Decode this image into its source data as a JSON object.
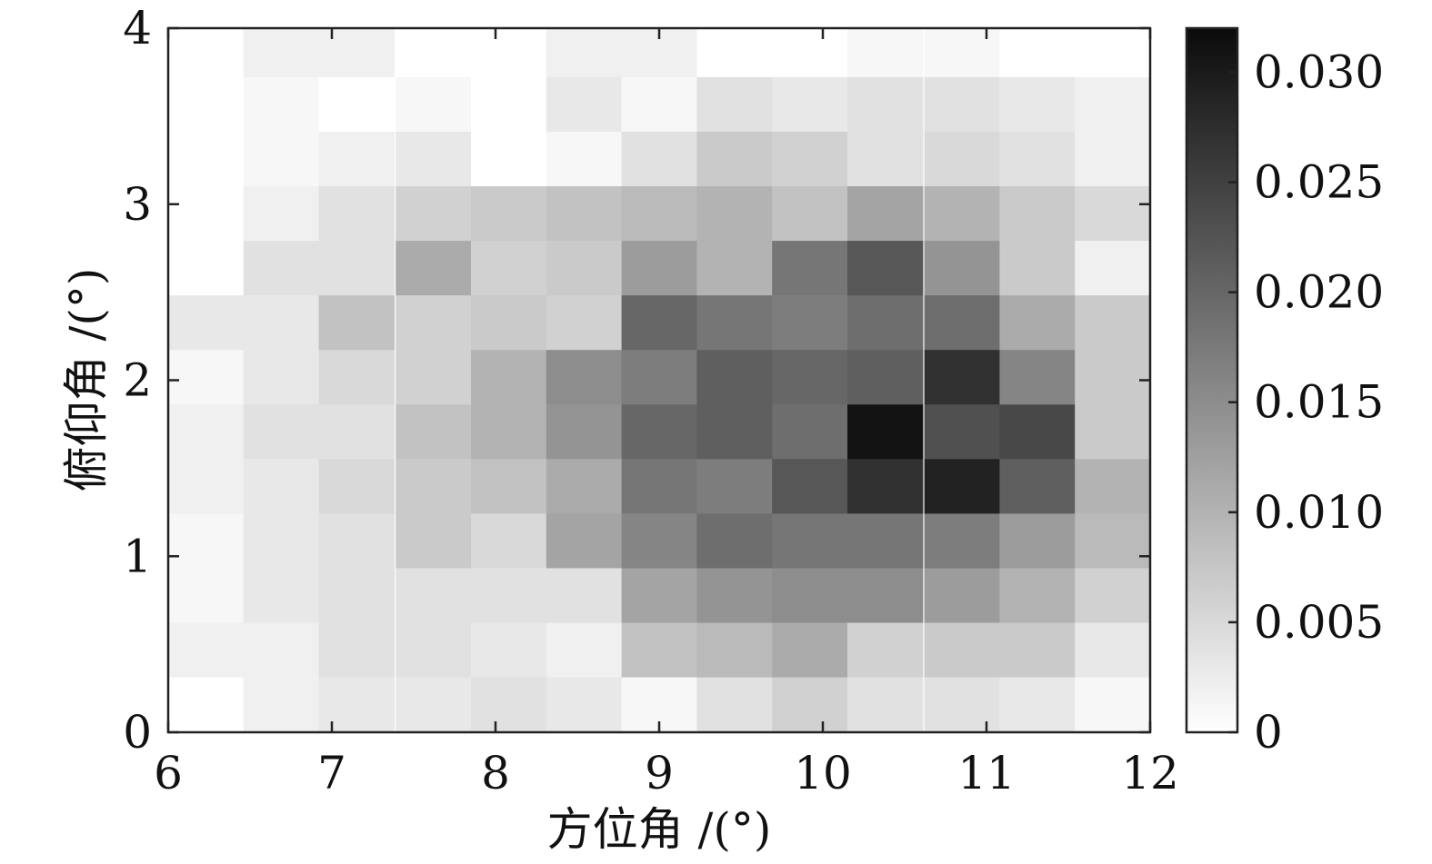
{
  "chart_data": {
    "type": "heatmap",
    "title": "",
    "xlabel": "方位角 /(°)",
    "ylabel": "俯仰角 /(°)",
    "xlim": [
      6,
      12
    ],
    "ylim": [
      0,
      4
    ],
    "x_ticks": [
      6,
      7,
      8,
      9,
      10,
      11,
      12
    ],
    "x_tick_labels": [
      "6",
      "7",
      "8",
      "9",
      "10",
      "11",
      "12"
    ],
    "y_ticks": [
      0,
      1,
      2,
      3,
      4
    ],
    "y_tick_labels": [
      "0",
      "1",
      "2",
      "3",
      "4"
    ],
    "x_centers": [
      6.23,
      6.69,
      7.15,
      7.62,
      8.08,
      8.54,
      9.0,
      9.46,
      9.92,
      10.38,
      10.85,
      11.31,
      11.77
    ],
    "y_centers": [
      0.16,
      0.47,
      0.78,
      1.09,
      1.4,
      1.71,
      2.02,
      2.33,
      2.64,
      2.95,
      3.26,
      3.57,
      3.88
    ],
    "colormap": "gray-reversed",
    "grid": false,
    "colorbar": {
      "min": 0,
      "max": 0.032,
      "ticks": [
        0,
        0.005,
        0.01,
        0.015,
        0.02,
        0.025,
        0.03
      ],
      "tick_labels": [
        "0",
        "0.005",
        "0.010",
        "0.015",
        "0.020",
        "0.025",
        "0.030"
      ]
    },
    "values": [
      [
        0.0,
        0.002,
        0.003,
        0.003,
        0.004,
        0.003,
        0.001,
        0.004,
        0.006,
        0.004,
        0.004,
        0.003,
        0.001
      ],
      [
        0.002,
        0.002,
        0.004,
        0.004,
        0.003,
        0.002,
        0.008,
        0.009,
        0.011,
        0.006,
        0.007,
        0.007,
        0.003
      ],
      [
        0.001,
        0.003,
        0.004,
        0.004,
        0.004,
        0.004,
        0.012,
        0.014,
        0.015,
        0.015,
        0.013,
        0.01,
        0.006
      ],
      [
        0.001,
        0.003,
        0.004,
        0.007,
        0.005,
        0.012,
        0.016,
        0.019,
        0.018,
        0.018,
        0.017,
        0.013,
        0.009
      ],
      [
        0.002,
        0.003,
        0.005,
        0.007,
        0.008,
        0.011,
        0.018,
        0.017,
        0.022,
        0.027,
        0.029,
        0.021,
        0.01
      ],
      [
        0.002,
        0.004,
        0.004,
        0.008,
        0.01,
        0.014,
        0.02,
        0.021,
        0.019,
        0.031,
        0.023,
        0.024,
        0.007
      ],
      [
        0.001,
        0.003,
        0.005,
        0.006,
        0.01,
        0.015,
        0.017,
        0.021,
        0.02,
        0.021,
        0.027,
        0.016,
        0.007
      ],
      [
        0.003,
        0.003,
        0.008,
        0.006,
        0.007,
        0.006,
        0.02,
        0.018,
        0.017,
        0.019,
        0.019,
        0.011,
        0.007
      ],
      [
        0.0,
        0.004,
        0.004,
        0.011,
        0.006,
        0.007,
        0.013,
        0.01,
        0.018,
        0.022,
        0.014,
        0.007,
        0.002
      ],
      [
        0.0,
        0.002,
        0.004,
        0.006,
        0.007,
        0.008,
        0.009,
        0.01,
        0.008,
        0.012,
        0.01,
        0.007,
        0.005
      ],
      [
        0.0,
        0.001,
        0.002,
        0.003,
        0.0,
        0.001,
        0.004,
        0.007,
        0.006,
        0.004,
        0.005,
        0.004,
        0.002
      ],
      [
        0.0,
        0.001,
        0.0,
        0.001,
        0.0,
        0.003,
        0.001,
        0.004,
        0.003,
        0.004,
        0.004,
        0.003,
        0.002
      ],
      [
        0.0,
        0.002,
        0.002,
        0.0,
        0.0,
        0.002,
        0.002,
        0.0,
        0.0,
        0.001,
        0.001,
        0.0,
        0.0
      ]
    ]
  }
}
